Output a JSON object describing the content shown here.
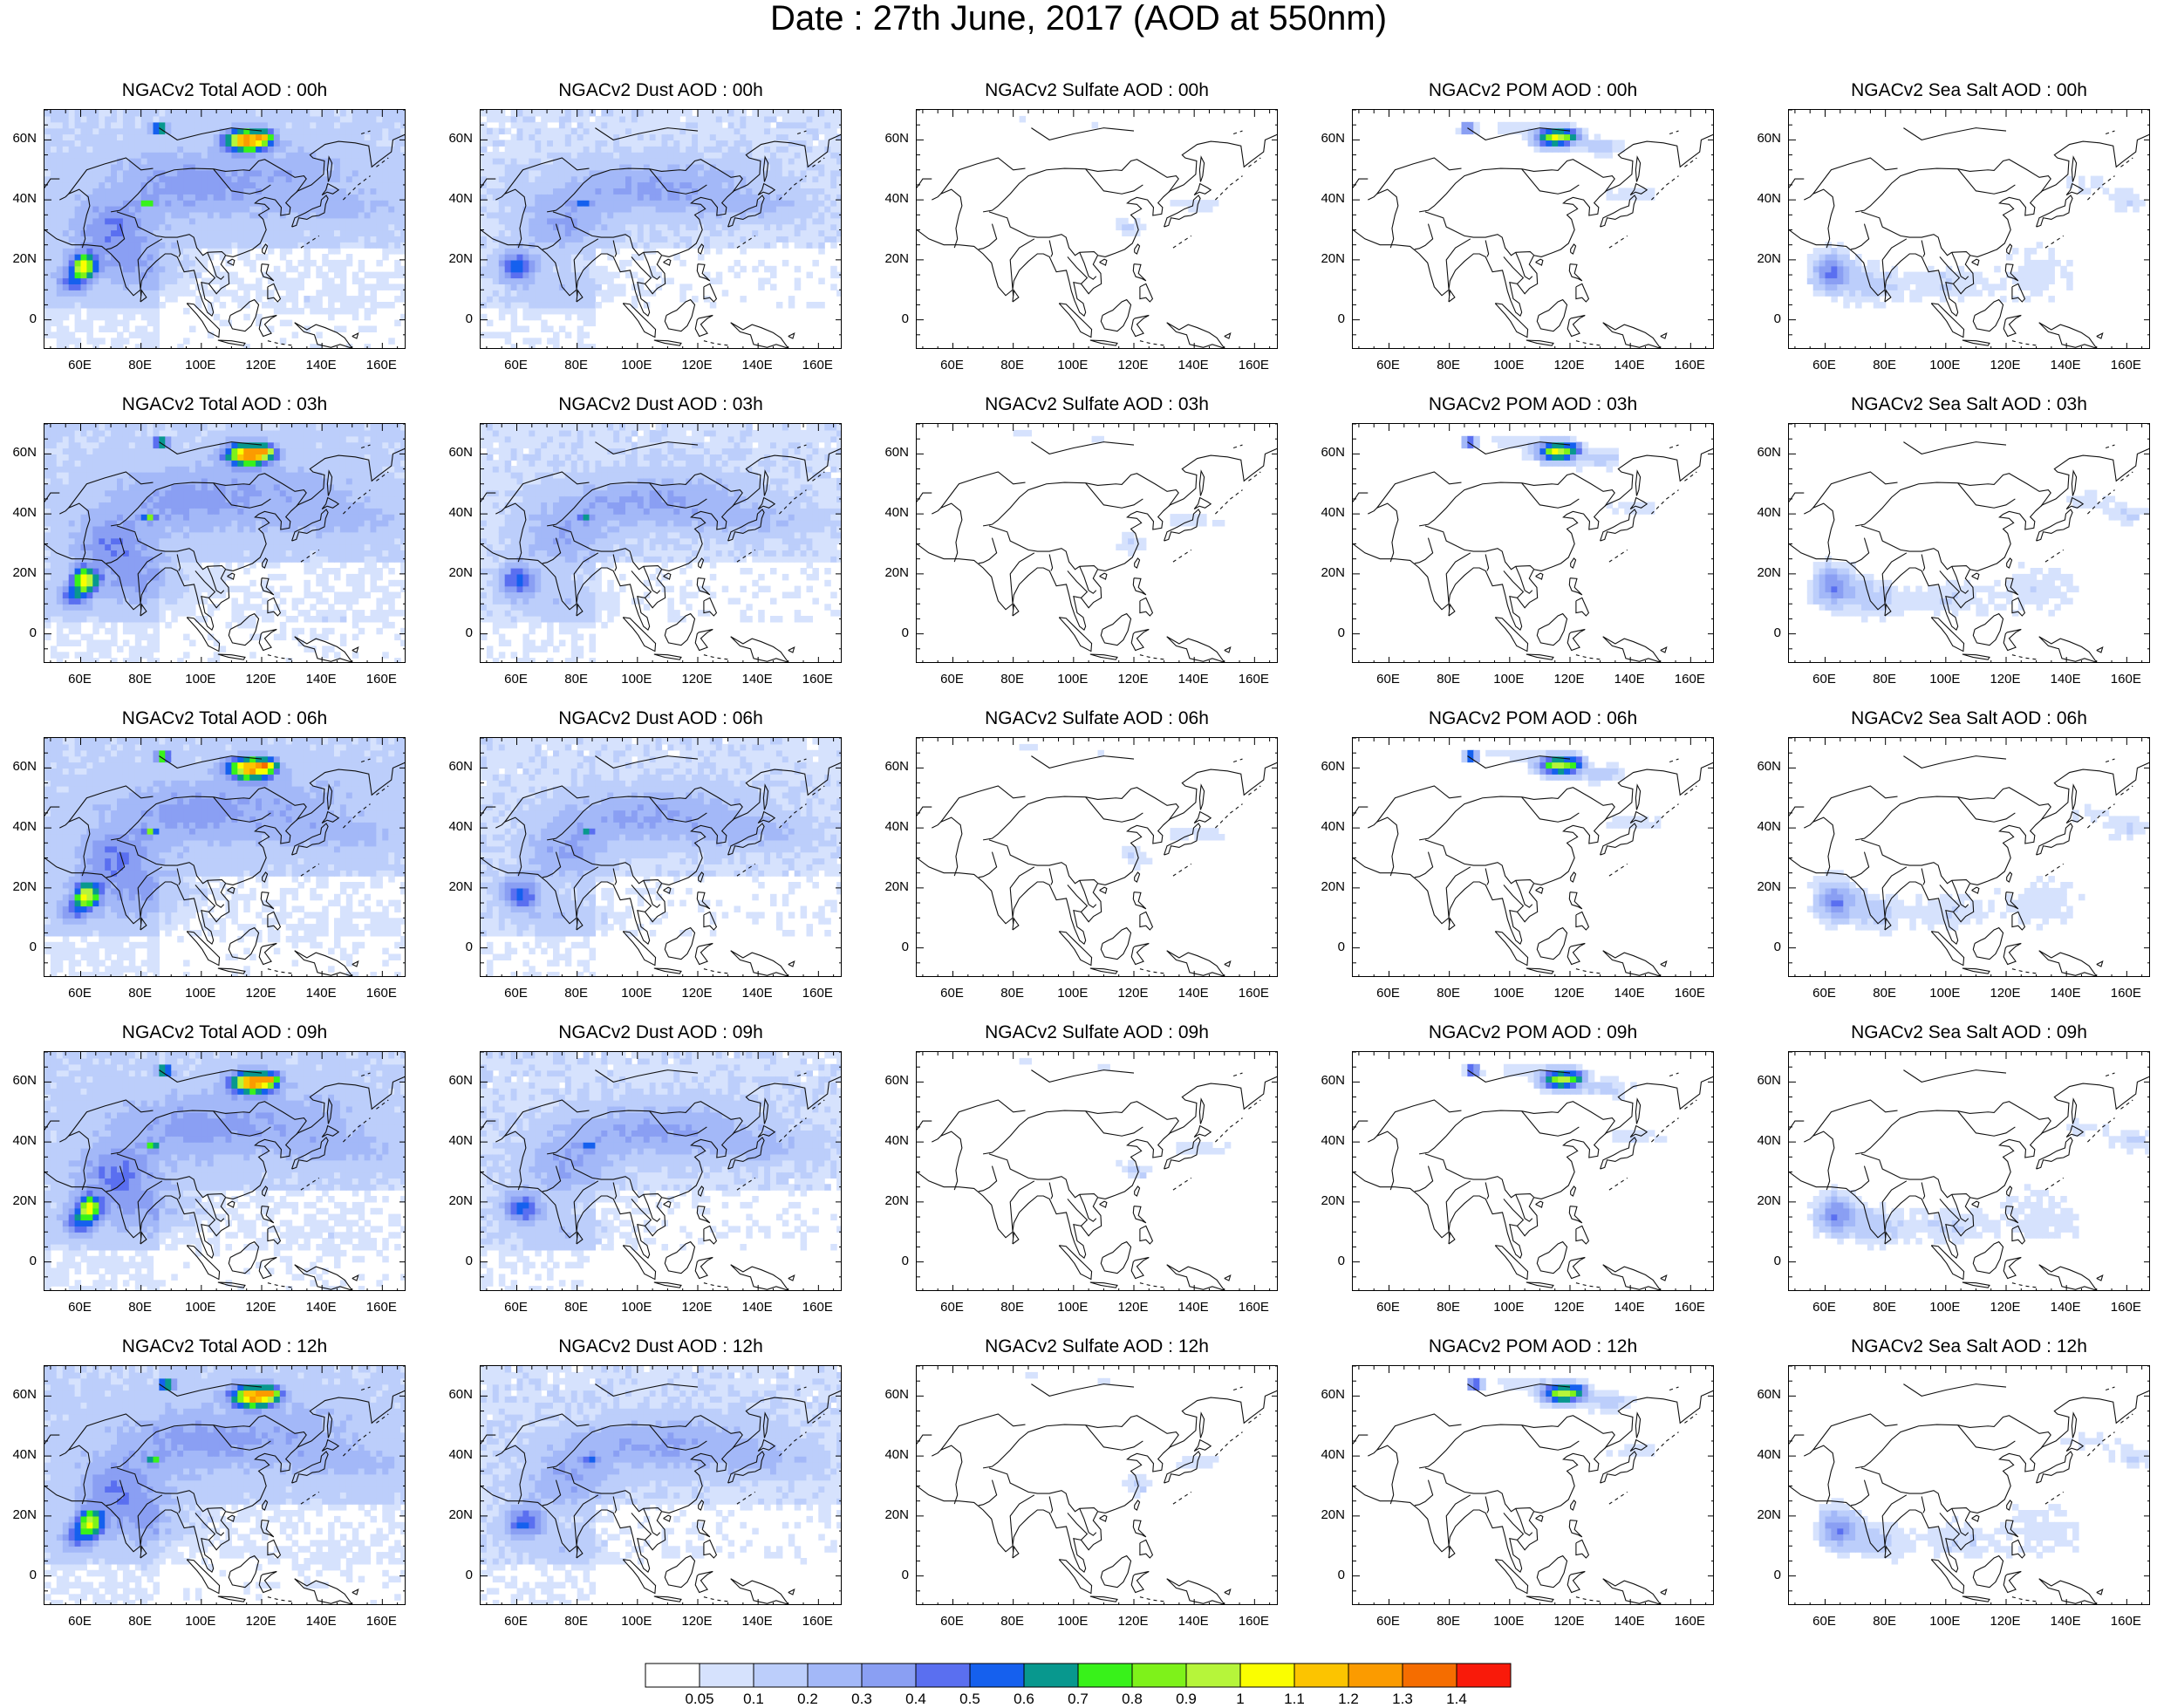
{
  "title": "Date : 27th June, 2017 (AOD at 550nm)",
  "panels": [
    [
      "NGACv2 Total AOD : 00h",
      "NGACv2 Dust AOD : 00h",
      "NGACv2 Sulfate AOD : 00h",
      "NGACv2 POM AOD : 00h",
      "NGACv2 Sea Salt AOD : 00h"
    ],
    [
      "NGACv2 Total AOD : 03h",
      "NGACv2 Dust AOD : 03h",
      "NGACv2 Sulfate AOD : 03h",
      "NGACv2 POM AOD : 03h",
      "NGACv2 Sea Salt AOD : 03h"
    ],
    [
      "NGACv2 Total AOD : 06h",
      "NGACv2 Dust AOD : 06h",
      "NGACv2 Sulfate AOD : 06h",
      "NGACv2 POM AOD : 06h",
      "NGACv2 Sea Salt AOD : 06h"
    ],
    [
      "NGACv2 Total AOD : 09h",
      "NGACv2 Dust AOD : 09h",
      "NGACv2 Sulfate AOD : 09h",
      "NGACv2 POM AOD : 09h",
      "NGACv2 Sea Salt  AOD : 09h"
    ],
    [
      "NGACv2 Total AOD  : 12h",
      "NGACv2 Dust AOD : 12h",
      "NGACv2 Sulfate AOD : 12h",
      "NGACv2 POM  AOD : 12h",
      "NGACv2 Sea Salt  AOD : 12h"
    ]
  ],
  "lat_labels": [
    "60N",
    "40N",
    "20N",
    "0"
  ],
  "lon_labels": [
    "60E",
    "80E",
    "100E",
    "120E",
    "140E",
    "160E"
  ],
  "colorbar": {
    "labels": [
      "0.05",
      "0.1",
      "0.2",
      "0.3",
      "0.4",
      "0.5",
      "0.6",
      "0.7",
      "0.8",
      "0.9",
      "1",
      "1.1",
      "1.2",
      "1.3",
      "1.4"
    ],
    "colors": [
      "#ffffff",
      "#d6e2fd",
      "#bccefb",
      "#a3b8f8",
      "#8a9ff3",
      "#5a6ff0",
      "#1560ee",
      "#08988e",
      "#38f21a",
      "#7ef21a",
      "#b6f53a",
      "#fafe00",
      "#fcc400",
      "#fb9b00",
      "#f56d00",
      "#f91a0a"
    ]
  }
}
